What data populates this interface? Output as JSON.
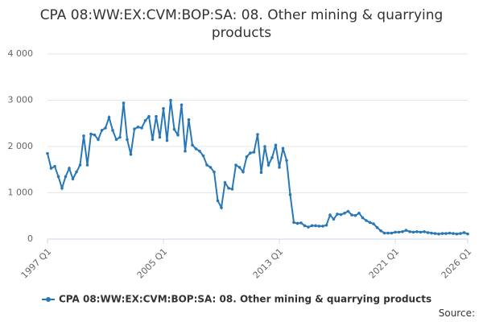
{
  "chart_data": {
    "type": "line",
    "title": "CPA 08:WW:EX:CVM:BOP:SA: 08. Other mining & quarrying products",
    "source": "Source:",
    "categories": [
      "1997 Q1",
      null,
      null,
      null,
      null,
      null,
      null,
      null,
      null,
      null,
      null,
      null,
      null,
      null,
      null,
      null,
      null,
      null,
      null,
      null,
      null,
      null,
      null,
      null,
      null,
      null,
      null,
      null,
      null,
      null,
      null,
      null,
      "2005 Q1",
      null,
      null,
      null,
      null,
      null,
      null,
      null,
      null,
      null,
      null,
      null,
      null,
      null,
      null,
      null,
      null,
      null,
      null,
      null,
      null,
      null,
      null,
      null,
      null,
      null,
      null,
      null,
      null,
      null,
      null,
      null,
      "2013 Q1",
      null,
      null,
      null,
      null,
      null,
      null,
      null,
      null,
      null,
      null,
      null,
      null,
      null,
      null,
      null,
      null,
      null,
      null,
      null,
      null,
      null,
      null,
      null,
      null,
      null,
      null,
      null,
      null,
      null,
      null,
      null,
      "2021 Q1",
      null,
      null,
      null,
      null,
      null,
      null,
      null,
      null,
      null,
      null,
      null,
      null,
      null,
      null,
      null,
      null,
      null,
      null,
      null,
      "2026 Q1"
    ],
    "series": [
      {
        "name": "CPA 08:WW:EX:CVM:BOP:SA: 08. Other mining & quarrying products",
        "color": "#2878b8",
        "values": [
          1850,
          1530,
          1570,
          1350,
          1100,
          1350,
          1530,
          1300,
          1450,
          1600,
          2230,
          1600,
          2270,
          2250,
          2150,
          2350,
          2400,
          2630,
          2350,
          2150,
          2200,
          2940,
          2150,
          1830,
          2380,
          2420,
          2400,
          2560,
          2650,
          2150,
          2650,
          2200,
          2820,
          2130,
          3000,
          2370,
          2250,
          2900,
          1900,
          2580,
          2030,
          1950,
          1900,
          1800,
          1600,
          1550,
          1450,
          830,
          680,
          1220,
          1100,
          1080,
          1600,
          1550,
          1450,
          1780,
          1860,
          1880,
          2260,
          1440,
          2000,
          1600,
          1760,
          2030,
          1550,
          1960,
          1700,
          960,
          360,
          340,
          350,
          290,
          260,
          290,
          290,
          280,
          280,
          300,
          520,
          430,
          540,
          530,
          560,
          600,
          520,
          510,
          560,
          460,
          400,
          360,
          330,
          250,
          180,
          130,
          130,
          130,
          150,
          150,
          160,
          190,
          160,
          150,
          160,
          150,
          160,
          140,
          130,
          120,
          110,
          120,
          120,
          130,
          120,
          110,
          120,
          140,
          110
        ]
      }
    ],
    "ylim": [
      0,
      4000
    ],
    "yticks": [
      {
        "value": 0,
        "label": "0"
      },
      {
        "value": 1000,
        "label": "1 000"
      },
      {
        "value": 2000,
        "label": "2 000"
      },
      {
        "value": 3000,
        "label": "3 000"
      },
      {
        "value": 4000,
        "label": "4 000"
      }
    ],
    "grid": true
  }
}
